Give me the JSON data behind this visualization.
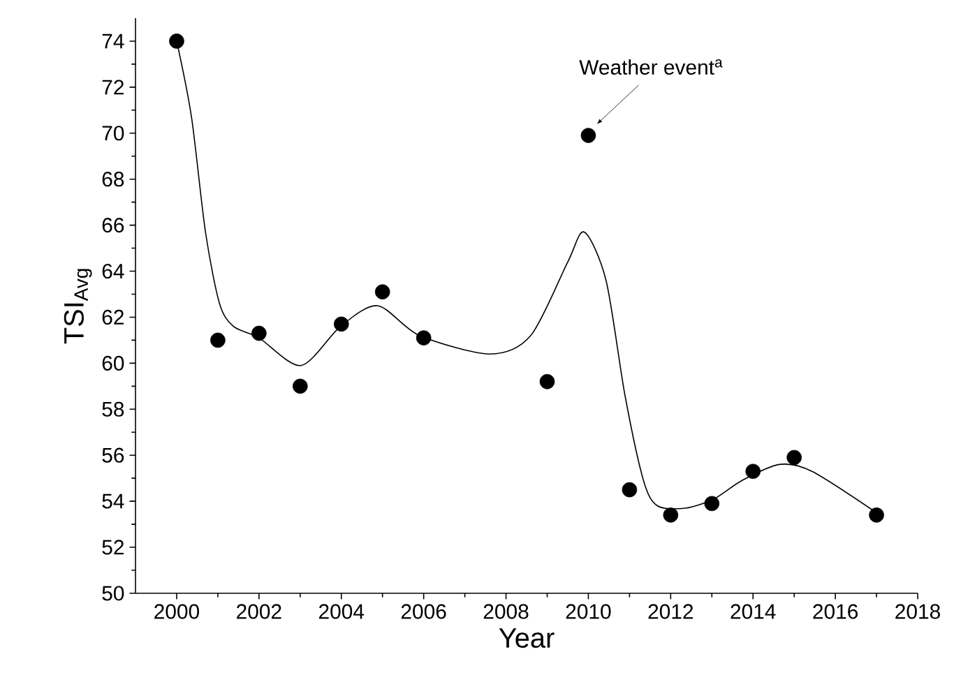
{
  "chart_data": {
    "type": "scatter",
    "xlabel": "Year",
    "ylabel": "TSI$_{Avg}$",
    "xlim": [
      1999,
      2018
    ],
    "xticks": [
      2000,
      2002,
      2004,
      2006,
      2008,
      2010,
      2012,
      2014,
      2016,
      2018
    ],
    "ylim": [
      50,
      75
    ],
    "yticks": [
      50,
      52,
      54,
      56,
      58,
      60,
      62,
      64,
      66,
      68,
      70,
      72,
      74
    ],
    "series": [
      {
        "marker": "circle",
        "color": "#000000",
        "x": [
          2000,
          2001,
          2002,
          2003,
          2004,
          2005,
          2006,
          2009,
          2010,
          2011,
          2012,
          2013,
          2014,
          2015,
          2017
        ],
        "values": [
          74.0,
          61.0,
          61.3,
          59.0,
          61.7,
          63.1,
          61.1,
          59.2,
          69.9,
          54.5,
          53.4,
          53.9,
          55.3,
          55.9,
          53.4
        ]
      },
      {
        "type": "line",
        "marker": "none",
        "color": "#000000",
        "line_style": "solid",
        "x": [
          2000,
          2000.36,
          2000.7,
          2001.04,
          2001.38,
          2002,
          2003.02,
          2003.98,
          2004.88,
          2005.9,
          2007.6,
          2008.6,
          2009.5,
          2009.9,
          2010.43,
          2010.89,
          2011.34,
          2011.68,
          2012.36,
          2013.05,
          2013.73,
          2014.64,
          2015.43,
          2017
        ],
        "values": [
          74.0,
          70.7,
          65.7,
          62.6,
          61.6,
          61.1,
          59.9,
          61.6,
          62.5,
          61.2,
          60.4,
          61.2,
          64.4,
          65.7,
          63.6,
          58.6,
          54.9,
          53.8,
          53.7,
          54.1,
          54.9,
          55.6,
          55.3,
          53.5
        ]
      }
    ],
    "annotations": [
      {
        "text": "Weather event$^{a}$",
        "x": 2010,
        "y": 69.9
      }
    ]
  }
}
